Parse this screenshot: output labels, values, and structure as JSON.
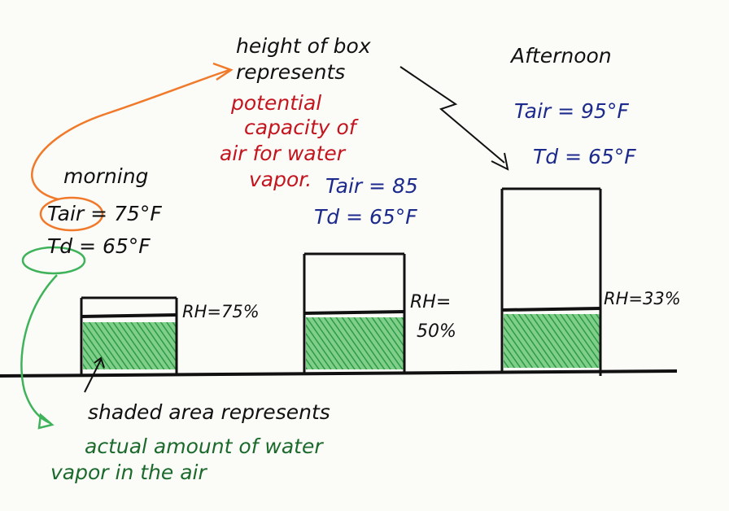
{
  "annotation": {
    "lines": [
      "height of box",
      "represents"
    ],
    "highlight": [
      "potential",
      "capacity of",
      "air for water",
      "vapor."
    ]
  },
  "scenarios": [
    {
      "label": "morning",
      "tair": "Tair = 75°F",
      "td": "Td = 65°F",
      "rh": [
        "RH=75%"
      ]
    },
    {
      "tair": "Tair = 85",
      "td": "Td = 65°F",
      "rh": [
        "RH=",
        "50%"
      ]
    },
    {
      "label": "Afternoon",
      "tair": "Tair = 95°F",
      "td": "Td = 65°F",
      "rh": [
        "RH=33%"
      ]
    }
  ],
  "footnote": {
    "lines": [
      "shaded area represents",
      "actual amount of water",
      "vapor in the air"
    ]
  }
}
